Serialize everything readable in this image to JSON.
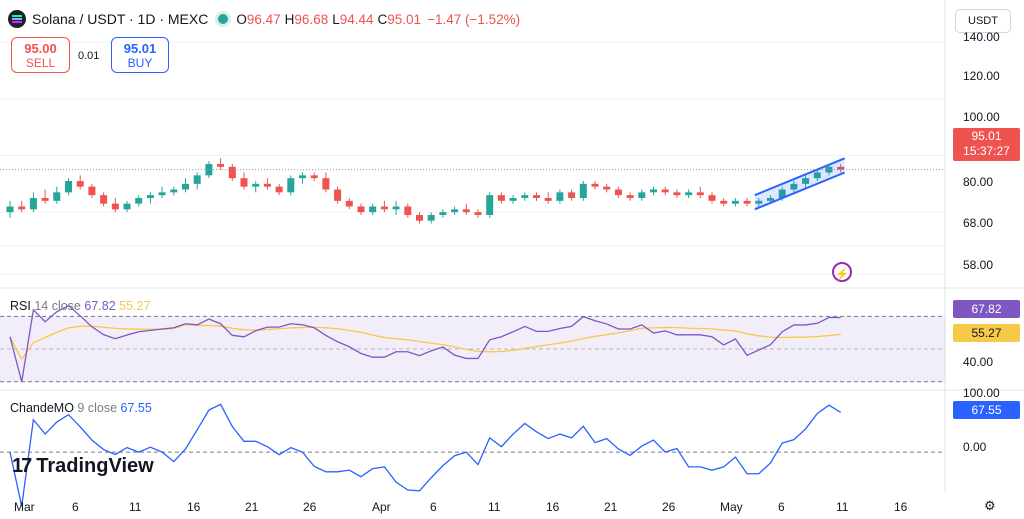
{
  "header": {
    "symbol_title": "Solana / USDT · 1D · MEXC",
    "open_label": "O",
    "open": "96.47",
    "high_label": "H",
    "high": "96.68",
    "low_label": "L",
    "low": "94.44",
    "close_label": "C",
    "close": "95.01",
    "change": "−1.47 (−1.52%)"
  },
  "trade": {
    "sell_price": "95.00",
    "sell_label": "SELL",
    "spread": "0.01",
    "buy_price": "95.01",
    "buy_label": "BUY"
  },
  "currency": "USDT",
  "price_axis": [
    "140.00",
    "120.00",
    "100.00",
    "80.00",
    "68.00",
    "58.00"
  ],
  "last_price": {
    "price": "95.01",
    "countdown": "15:37:27"
  },
  "rsi": {
    "name": "RSI",
    "params": "14 close",
    "value": "67.82",
    "ma_value": "55.27",
    "axis": [
      "40.00"
    ],
    "line_color": "#7e57c2",
    "ma_color": "#f7c948"
  },
  "cmo": {
    "name": "ChandeMO",
    "params": "9 close",
    "value": "67.55",
    "axis": [
      "100.00",
      "0.00"
    ],
    "line_color": "#2962ff"
  },
  "brand": "TradingView",
  "time_axis": [
    "Mar",
    "6",
    "11",
    "16",
    "21",
    "26",
    "Apr",
    "6",
    "11",
    "16",
    "21",
    "26",
    "May",
    "6",
    "11",
    "16"
  ],
  "colors": {
    "up": "#26a69a",
    "down": "#ef5350",
    "channel": "#2962ff"
  },
  "chart_data": {
    "type": "candlestick",
    "title": "Solana / USDT · 1D · MEXC",
    "ylim": [
      55,
      145
    ],
    "candles": [
      [
        80,
        84,
        78,
        82
      ],
      [
        82,
        84,
        80,
        81
      ],
      [
        81,
        87,
        80,
        85
      ],
      [
        85,
        88,
        83,
        84
      ],
      [
        84,
        89,
        83,
        87
      ],
      [
        87,
        92,
        86,
        91
      ],
      [
        91,
        93,
        88,
        89
      ],
      [
        89,
        90,
        85,
        86
      ],
      [
        86,
        87,
        82,
        83
      ],
      [
        83,
        85,
        80,
        81
      ],
      [
        81,
        84,
        80,
        83
      ],
      [
        83,
        86,
        82,
        85
      ],
      [
        85,
        87,
        83,
        86
      ],
      [
        86,
        89,
        85,
        87
      ],
      [
        87,
        89,
        86,
        88
      ],
      [
        88,
        92,
        87,
        90
      ],
      [
        90,
        94,
        88,
        93
      ],
      [
        93,
        98,
        92,
        97
      ],
      [
        97,
        99,
        95,
        96
      ],
      [
        96,
        97,
        91,
        92
      ],
      [
        92,
        94,
        88,
        89
      ],
      [
        89,
        91,
        87,
        90
      ],
      [
        90,
        92,
        88,
        89
      ],
      [
        89,
        90,
        86,
        87
      ],
      [
        87,
        93,
        86,
        92
      ],
      [
        92,
        94,
        90,
        93
      ],
      [
        93,
        94,
        91,
        92
      ],
      [
        92,
        94,
        87,
        88
      ],
      [
        88,
        89,
        83,
        84
      ],
      [
        84,
        85,
        81,
        82
      ],
      [
        82,
        83,
        79,
        80
      ],
      [
        80,
        83,
        79,
        82
      ],
      [
        82,
        84,
        80,
        81
      ],
      [
        81,
        84,
        79,
        82
      ],
      [
        82,
        83,
        78,
        79
      ],
      [
        79,
        80,
        76,
        77
      ],
      [
        77,
        80,
        76,
        79
      ],
      [
        79,
        81,
        78,
        80
      ],
      [
        80,
        82,
        79,
        81
      ],
      [
        81,
        83,
        79,
        80
      ],
      [
        80,
        81,
        78,
        79
      ],
      [
        79,
        87,
        78,
        86
      ],
      [
        86,
        87,
        83,
        84
      ],
      [
        84,
        86,
        83,
        85
      ],
      [
        85,
        87,
        84,
        86
      ],
      [
        86,
        87,
        84,
        85
      ],
      [
        85,
        87,
        83,
        84
      ],
      [
        84,
        88,
        83,
        87
      ],
      [
        87,
        88,
        84,
        85
      ],
      [
        85,
        91,
        84,
        90
      ],
      [
        90,
        91,
        88,
        89
      ],
      [
        89,
        90,
        87,
        88
      ],
      [
        88,
        89,
        85,
        86
      ],
      [
        86,
        87,
        84,
        85
      ],
      [
        85,
        88,
        84,
        87
      ],
      [
        87,
        89,
        86,
        88
      ],
      [
        88,
        89,
        86,
        87
      ],
      [
        87,
        88,
        85,
        86
      ],
      [
        86,
        88,
        85,
        87
      ],
      [
        87,
        89,
        85,
        86
      ],
      [
        86,
        87,
        83,
        84
      ],
      [
        84,
        85,
        82,
        83
      ],
      [
        83,
        85,
        82,
        84
      ],
      [
        84,
        85,
        82,
        83
      ],
      [
        83,
        85,
        82,
        84
      ],
      [
        84,
        86,
        83,
        85
      ],
      [
        85,
        89,
        84,
        88
      ],
      [
        88,
        91,
        87,
        90
      ],
      [
        90,
        93,
        88,
        92
      ],
      [
        92,
        95,
        91,
        94
      ],
      [
        94,
        97,
        93,
        96
      ],
      [
        96,
        97,
        94,
        95
      ]
    ],
    "channel": {
      "upper": [
        86,
        99
      ],
      "lower": [
        81,
        94
      ]
    }
  }
}
